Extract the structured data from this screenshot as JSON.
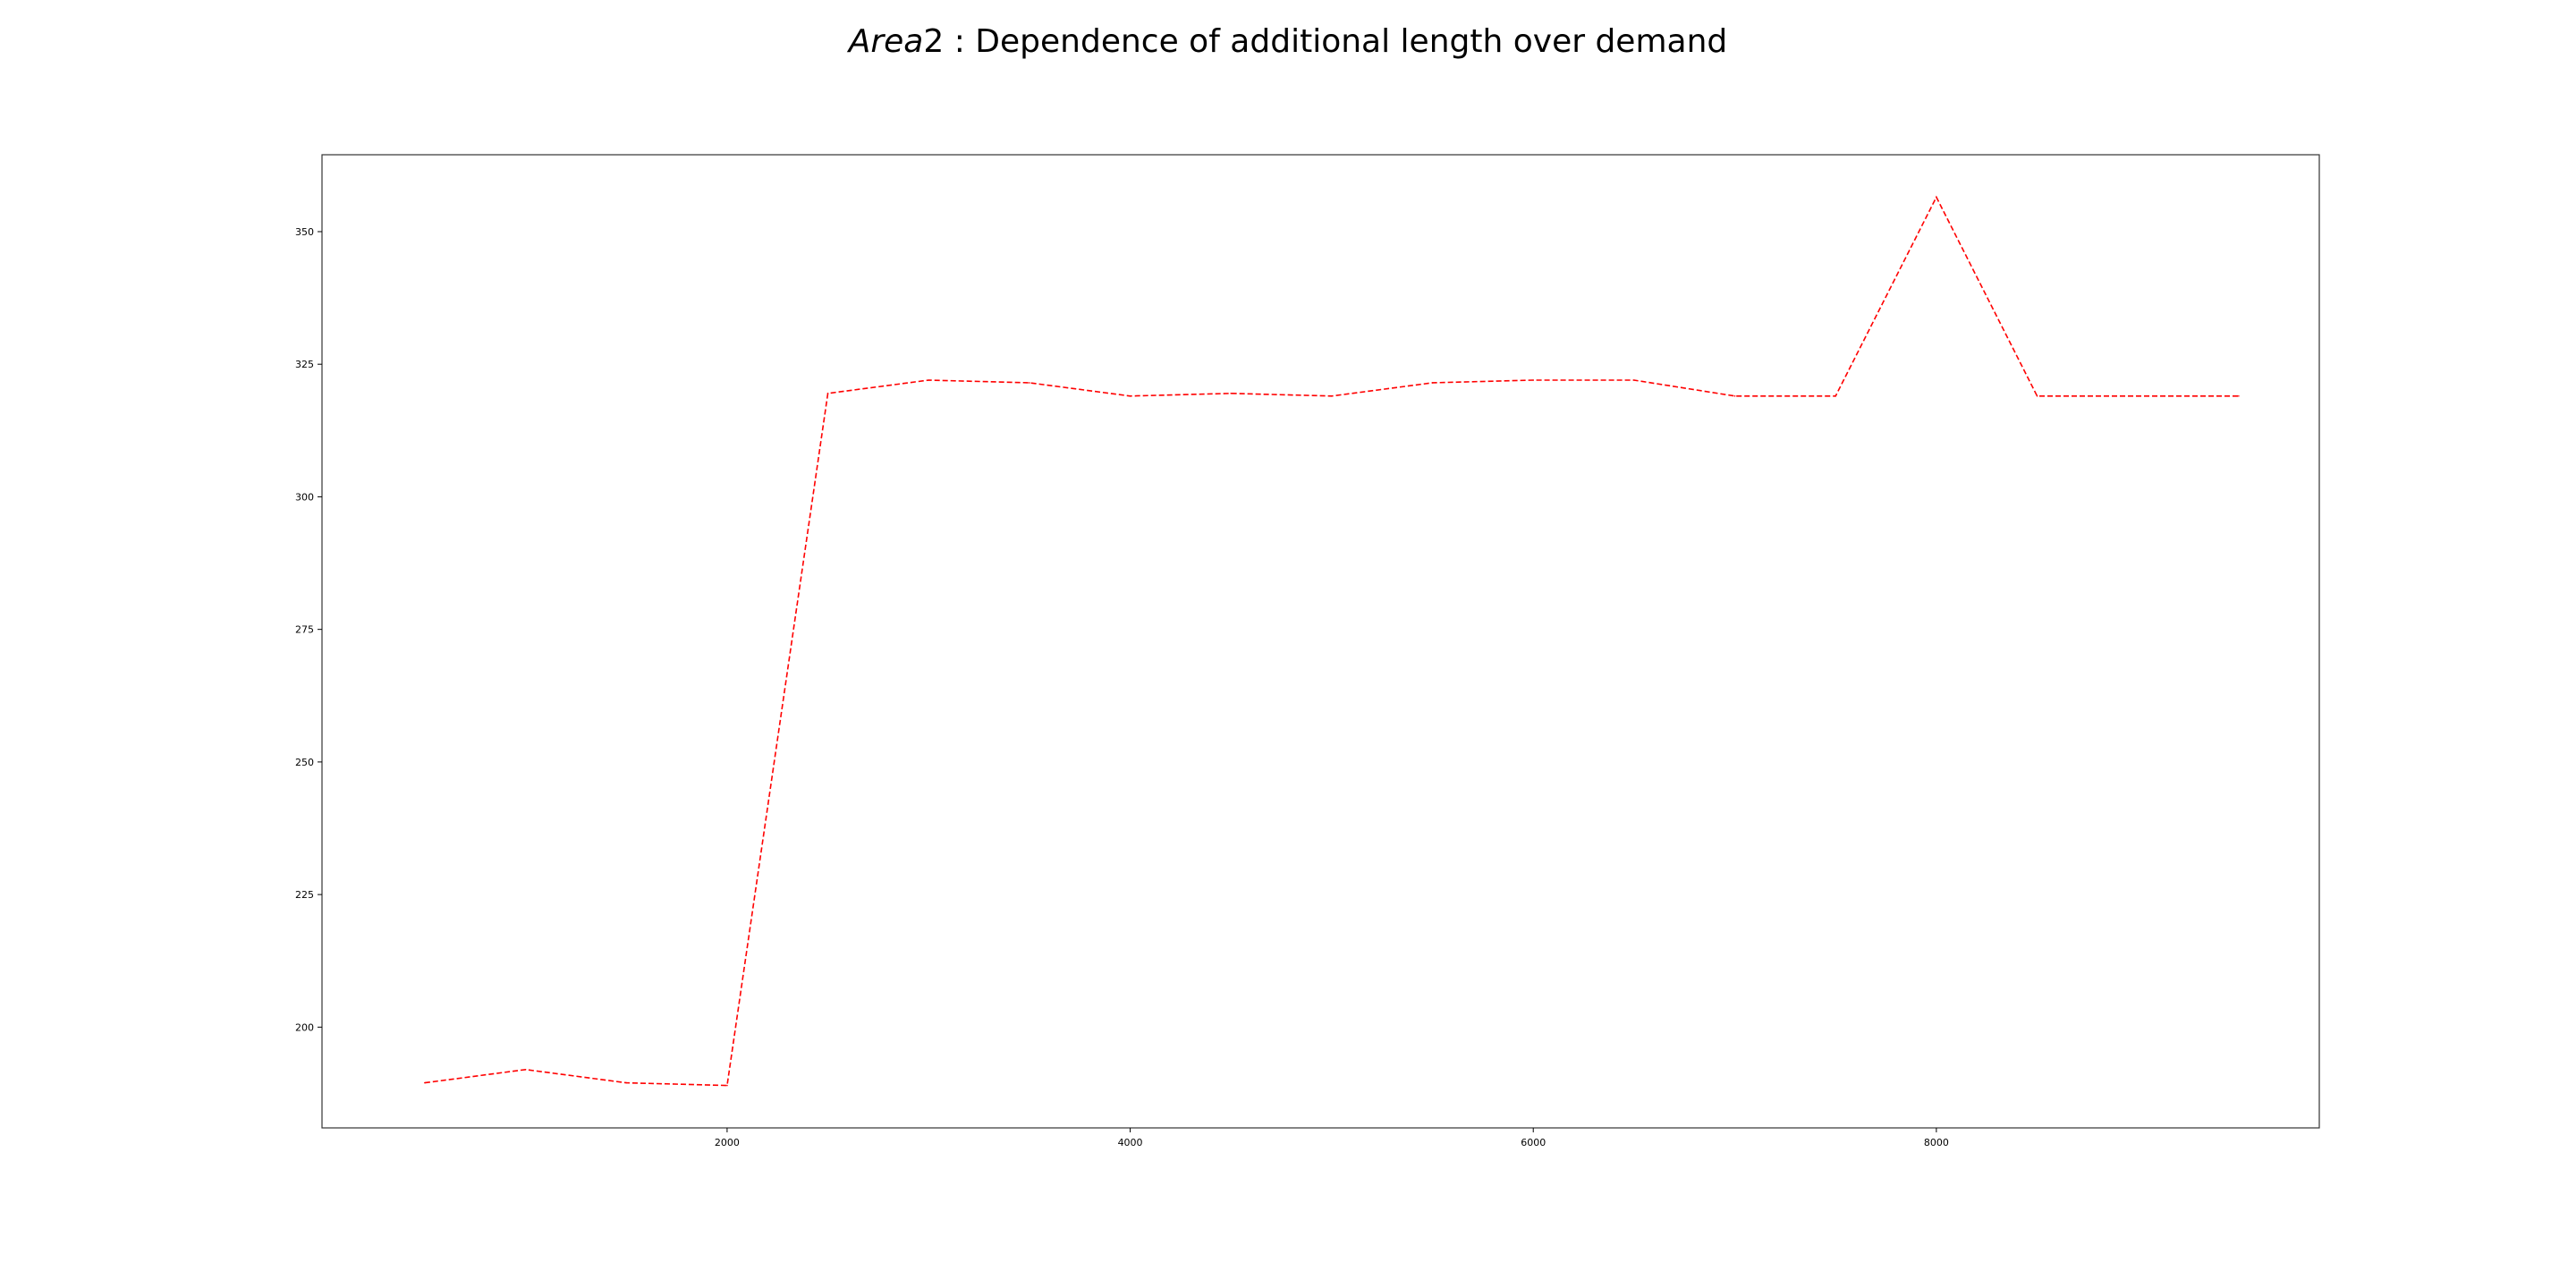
{
  "chart_data": {
    "type": "line",
    "title_italic": "Area",
    "title_suffix": "2 : Dependence of additional length over demand",
    "xlabel": "",
    "ylabel": "",
    "xlim": [
      -10,
      9900
    ],
    "ylim": [
      181,
      364.5
    ],
    "grid": false,
    "x_ticks": [
      2000,
      4000,
      6000,
      8000
    ],
    "y_ticks": [
      200,
      225,
      250,
      275,
      300,
      325,
      350
    ],
    "series": [
      {
        "color": "#ff0000",
        "linestyle": "dashed",
        "x": [
          500,
          1000,
          1500,
          2000,
          2500,
          3000,
          3500,
          4000,
          4500,
          5000,
          5500,
          6000,
          6500,
          7000,
          7500,
          8000,
          8500,
          9000,
          9500
        ],
        "y": [
          189.5,
          192,
          189.5,
          189,
          319.5,
          322,
          321.5,
          319,
          319.5,
          319,
          321.5,
          322,
          322,
          319,
          319,
          356.5,
          319,
          319,
          319
        ]
      }
    ]
  }
}
